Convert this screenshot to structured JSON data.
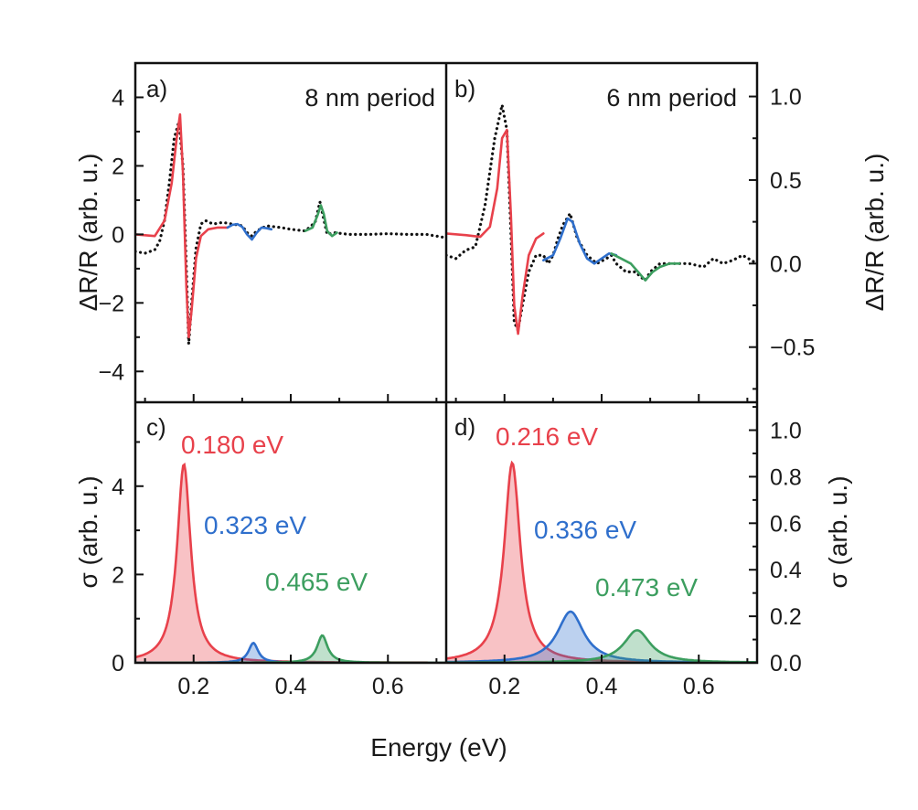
{
  "chart_data": [
    {
      "panel": "a",
      "type": "line",
      "panel_label": "a)",
      "title": "8 nm period",
      "ylabel": "ΔR/R (arb. u.)",
      "xlim": [
        0.08,
        0.72
      ],
      "ylim": [
        -4.9,
        5.0
      ],
      "yticks": [
        -4,
        -2,
        0,
        2,
        4
      ],
      "yticklabels": [
        "−4",
        "−2",
        "0",
        "2",
        "4"
      ],
      "series": [
        {
          "name": "data",
          "style": "dotted",
          "color": "#111111",
          "x": [
            0.08,
            0.1,
            0.12,
            0.13,
            0.14,
            0.15,
            0.16,
            0.17,
            0.178,
            0.185,
            0.19,
            0.196,
            0.205,
            0.215,
            0.225,
            0.24,
            0.26,
            0.28,
            0.3,
            0.31,
            0.32,
            0.33,
            0.35,
            0.38,
            0.4,
            0.43,
            0.45,
            0.46,
            0.467,
            0.475,
            0.49,
            0.52,
            0.56,
            0.6,
            0.64,
            0.68,
            0.72
          ],
          "y": [
            -0.5,
            -0.55,
            -0.45,
            -0.2,
            0.4,
            1.5,
            2.8,
            3.3,
            2.0,
            -1.0,
            -3.2,
            -2.0,
            -0.4,
            0.3,
            0.4,
            0.3,
            0.35,
            0.3,
            0.25,
            0.05,
            -0.05,
            0.1,
            0.25,
            0.2,
            0.15,
            0.1,
            0.35,
            0.95,
            0.5,
            0.0,
            0.05,
            0.0,
            0.0,
            0.02,
            0.0,
            0.0,
            -0.1
          ]
        },
        {
          "name": "fit 0.180 eV",
          "style": "solid",
          "color": "#e8414b",
          "x": [
            0.08,
            0.12,
            0.14,
            0.155,
            0.165,
            0.172,
            0.178,
            0.185,
            0.19,
            0.196,
            0.205,
            0.215,
            0.23,
            0.25,
            0.27
          ],
          "y": [
            0.0,
            -0.05,
            0.4,
            1.5,
            2.8,
            3.5,
            1.8,
            -1.5,
            -3.0,
            -2.2,
            -0.7,
            -0.05,
            0.15,
            0.2,
            0.2
          ]
        },
        {
          "name": "fit 0.323 eV",
          "style": "solid",
          "color": "#2f6fcc",
          "x": [
            0.27,
            0.28,
            0.29,
            0.3,
            0.31,
            0.32,
            0.33,
            0.34,
            0.35,
            0.36
          ],
          "y": [
            0.2,
            0.28,
            0.3,
            0.22,
            0.0,
            -0.15,
            0.05,
            0.2,
            0.18,
            0.15
          ]
        },
        {
          "name": "fit 0.465 eV",
          "style": "solid",
          "color": "#3c9e5f",
          "x": [
            0.43,
            0.445,
            0.455,
            0.462,
            0.468,
            0.475,
            0.485,
            0.495
          ],
          "y": [
            0.1,
            0.2,
            0.55,
            0.85,
            0.6,
            0.1,
            -0.05,
            0.05
          ]
        }
      ]
    },
    {
      "panel": "b",
      "type": "line",
      "panel_label": "b)",
      "title": "6 nm period",
      "ylabel": "ΔR/R (arb. u.)",
      "xlim": [
        0.08,
        0.72
      ],
      "ylim": [
        -0.83,
        1.2
      ],
      "yticks": [
        -0.5,
        0.0,
        0.5,
        1.0
      ],
      "yticklabels": [
        "−0.5",
        "0.0",
        "0.5",
        "1.0"
      ],
      "series": [
        {
          "name": "data",
          "style": "dotted",
          "color": "#111111",
          "x": [
            0.08,
            0.1,
            0.12,
            0.14,
            0.16,
            0.18,
            0.195,
            0.205,
            0.213,
            0.22,
            0.228,
            0.237,
            0.25,
            0.265,
            0.28,
            0.29,
            0.3,
            0.31,
            0.32,
            0.335,
            0.35,
            0.37,
            0.39,
            0.41,
            0.42,
            0.43,
            0.45,
            0.47,
            0.48,
            0.49,
            0.5,
            0.52,
            0.55,
            0.58,
            0.61,
            0.63,
            0.65,
            0.67,
            0.69,
            0.72
          ],
          "y": [
            0.05,
            0.03,
            0.08,
            0.1,
            0.35,
            0.75,
            0.95,
            0.8,
            0.2,
            -0.35,
            -0.4,
            -0.25,
            -0.05,
            0.05,
            0.05,
            0.0,
            0.05,
            0.15,
            0.23,
            0.3,
            0.15,
            0.05,
            0.0,
            0.03,
            0.05,
            0.0,
            -0.05,
            -0.05,
            -0.08,
            -0.1,
            -0.05,
            0.0,
            0.0,
            0.0,
            -0.02,
            0.03,
            0.0,
            0.02,
            0.05,
            0.0
          ]
        },
        {
          "name": "fit 0.216 eV",
          "style": "solid",
          "color": "#e8414b",
          "x": [
            0.08,
            0.12,
            0.15,
            0.17,
            0.185,
            0.195,
            0.205,
            0.213,
            0.22,
            0.228,
            0.237,
            0.25,
            0.265,
            0.28
          ],
          "y": [
            0.18,
            0.17,
            0.16,
            0.22,
            0.45,
            0.75,
            0.8,
            0.3,
            -0.25,
            -0.42,
            -0.2,
            0.05,
            0.15,
            0.18
          ]
        },
        {
          "name": "fit 0.336 eV",
          "style": "solid",
          "color": "#2f6fcc",
          "x": [
            0.28,
            0.3,
            0.315,
            0.33,
            0.34,
            0.355,
            0.37,
            0.385,
            0.4,
            0.415,
            0.43
          ],
          "y": [
            0.02,
            0.05,
            0.15,
            0.27,
            0.25,
            0.12,
            0.03,
            0.0,
            0.03,
            0.06,
            0.05
          ]
        },
        {
          "name": "fit 0.473 eV",
          "style": "solid",
          "color": "#3c9e5f",
          "x": [
            0.42,
            0.44,
            0.46,
            0.475,
            0.49,
            0.505,
            0.52,
            0.54,
            0.56
          ],
          "y": [
            0.06,
            0.03,
            0.0,
            -0.05,
            -0.1,
            -0.05,
            -0.02,
            0.0,
            0.0
          ]
        }
      ]
    },
    {
      "panel": "c",
      "type": "area",
      "panel_label": "c)",
      "ylabel": "σ (arb. u.)",
      "xlabel": "Energy (eV)",
      "xlim": [
        0.08,
        0.72
      ],
      "xticks": [
        0.2,
        0.4,
        0.6
      ],
      "xticklabels": [
        "0.2",
        "0.4",
        "0.6"
      ],
      "ylim": [
        0,
        5.9
      ],
      "yticks": [
        0,
        2,
        4
      ],
      "yticklabels": [
        "0",
        "2",
        "4"
      ],
      "series": [
        {
          "name": "0.180 eV",
          "label": "0.180 eV",
          "color": "#e8414b",
          "center": 0.18,
          "amplitude": 4.5,
          "width": 0.017
        },
        {
          "name": "0.323 eV",
          "label": "0.323 eV",
          "color": "#2f6fcc",
          "center": 0.323,
          "amplitude": 0.45,
          "width": 0.012
        },
        {
          "name": "0.465 eV",
          "label": "0.465 eV",
          "color": "#3c9e5f",
          "center": 0.465,
          "amplitude": 0.62,
          "width": 0.013
        }
      ]
    },
    {
      "panel": "d",
      "type": "area",
      "panel_label": "d)",
      "ylabel": "σ (arb. u.)",
      "xlabel": "Energy (eV)",
      "xlim": [
        0.08,
        0.72
      ],
      "xticks": [
        0.2,
        0.4,
        0.6
      ],
      "xticklabels": [
        "0.2",
        "0.4",
        "0.6"
      ],
      "ylim": [
        0,
        1.12
      ],
      "yticks": [
        0.0,
        0.2,
        0.4,
        0.6,
        0.8,
        1.0
      ],
      "yticklabels": [
        "0.0",
        "0.2",
        "0.4",
        "0.6",
        "0.8",
        "1.0"
      ],
      "series": [
        {
          "name": "0.216 eV",
          "label": "0.216 eV",
          "color": "#e8414b",
          "center": 0.216,
          "amplitude": 0.86,
          "width": 0.02
        },
        {
          "name": "0.336 eV",
          "label": "0.336 eV",
          "color": "#2f6fcc",
          "center": 0.336,
          "amplitude": 0.22,
          "width": 0.033
        },
        {
          "name": "0.473 eV",
          "label": "0.473 eV",
          "color": "#3c9e5f",
          "center": 0.473,
          "amplitude": 0.14,
          "width": 0.033
        }
      ]
    }
  ],
  "figure": {
    "xlabel": "Energy (eV)"
  }
}
